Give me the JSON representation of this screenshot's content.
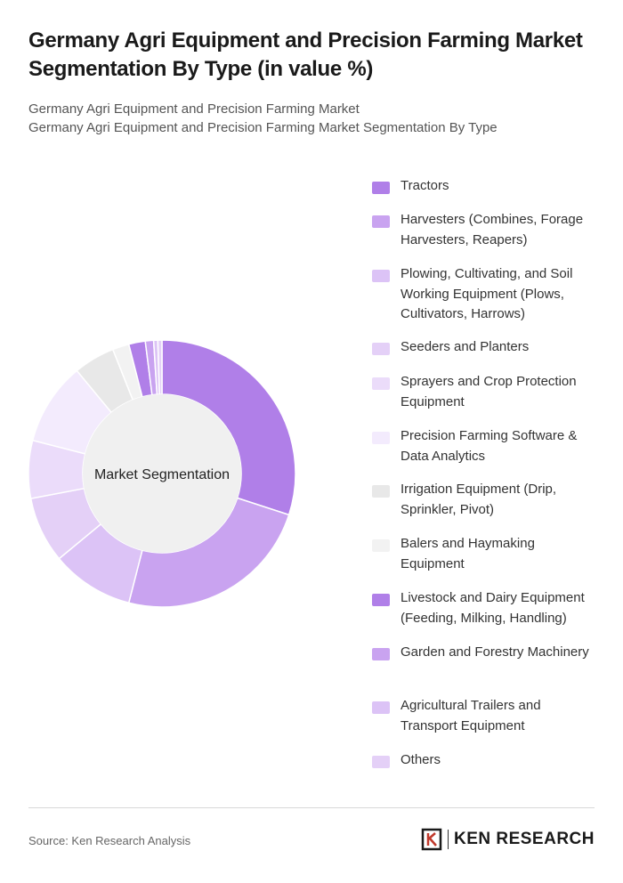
{
  "title": "Germany Agri Equipment and Precision Farming Market Segmentation By Type (in value %)",
  "subtitle_line1": "Germany Agri Equipment and Precision Farming Market",
  "subtitle_line2": "Germany Agri Equipment and Precision Farming Market Segmentation By Type",
  "center_label": "Market Segmentation",
  "source": "Source: Ken Research Analysis",
  "brand": "KEN RESEARCH",
  "chart_data": {
    "type": "pie",
    "donut": true,
    "categories": [
      "Tractors",
      "Harvesters (Combines, Forage Harvesters, Reapers)",
      "Plowing, Cultivating, and Soil Working Equipment (Plows, Cultivators, Harrows)",
      "Seeders and Planters",
      "Sprayers and Crop Protection Equipment",
      "Precision Farming Software & Data Analytics",
      "Irrigation Equipment (Drip, Sprinkler, Pivot)",
      "Balers and Haymaking Equipment",
      "Livestock and Dairy Equipment (Feeding, Milking, Handling)",
      "Garden and Forestry Machinery",
      "Agricultural Trailers and Transport Equipment",
      "Others"
    ],
    "values": [
      30,
      24,
      10,
      8,
      7,
      10,
      5,
      2,
      2,
      1,
      0.5,
      0.5
    ],
    "colors": [
      "#b07fe8",
      "#c9a3f0",
      "#dcc3f6",
      "#e4d0f7",
      "#ebdcfa",
      "#f3ebfd",
      "#e8e8e8",
      "#f2f2f2",
      "#b07fe8",
      "#c9a3f0",
      "#dcc3f6",
      "#e4d0f7"
    ],
    "legend_position": "right"
  }
}
